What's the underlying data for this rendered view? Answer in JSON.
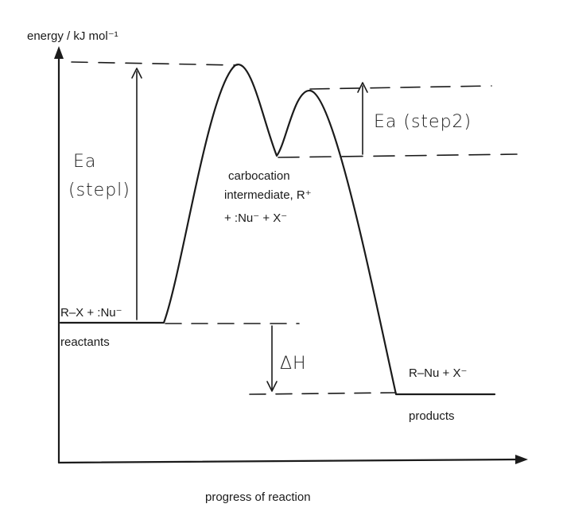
{
  "axes": {
    "y_label": "energy / kJ mol⁻¹",
    "x_label": "progress of reaction"
  },
  "levels": {
    "reactants_species": "R–X  +  :Nu⁻",
    "reactants_label": "reactants",
    "products_species": "R–Nu  +  X⁻",
    "products_label": "products"
  },
  "intermediate": {
    "line1": "carbocation",
    "line2": "intermediate, R⁺",
    "line3": "+  :Nu⁻  + X⁻"
  },
  "handwritten": {
    "ea1_line1": "Ea",
    "ea1_line2": "(stepl)",
    "ea2": "Ea (step2)",
    "delta_h": "ΔH"
  },
  "colors": {
    "ink": "#1b1b1b",
    "background": "#ffffff"
  }
}
